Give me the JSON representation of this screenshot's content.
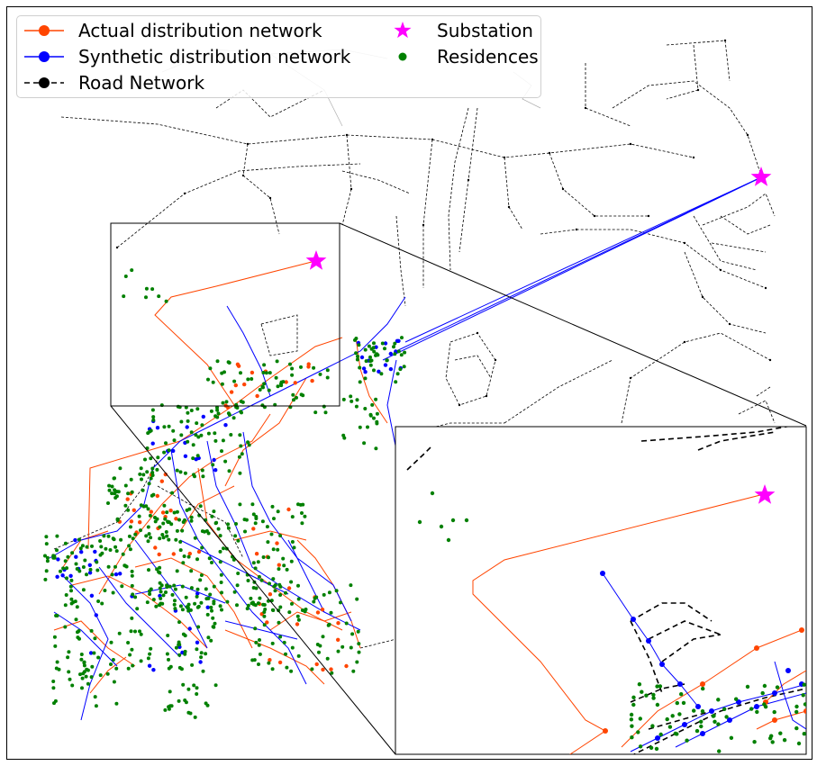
{
  "legend": {
    "actual": "Actual distribution network",
    "synthetic": "Synthetic distribution network",
    "road": "Road Network",
    "substation": "Substation",
    "residences": "Residences"
  },
  "colors": {
    "actual": "#ff4500",
    "synthetic": "#0000ff",
    "road": "#000000",
    "substation": "#ff00ff",
    "residences": "#008000",
    "frame": "#000000"
  },
  "icons": {
    "substation": "star-marker",
    "residences": "dot-marker"
  }
}
